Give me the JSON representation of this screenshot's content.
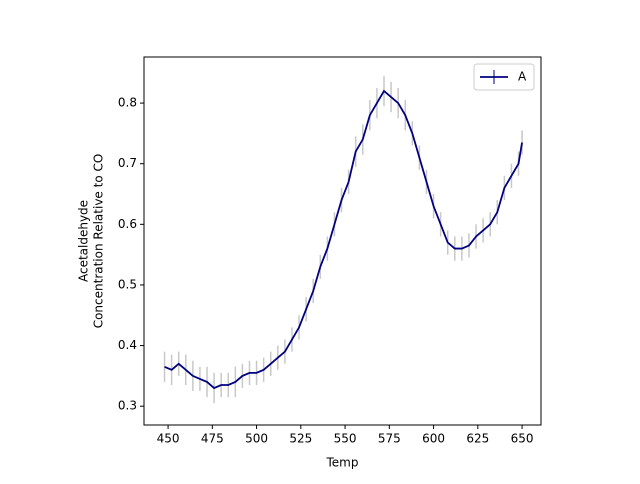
{
  "chart_data": {
    "type": "line",
    "x_label": "Temp",
    "y_label": [
      "Acetaldehyde",
      "Concentration Relative to CO"
    ],
    "x": [
      448,
      452,
      456,
      460,
      464,
      468,
      472,
      476,
      480,
      484,
      488,
      492,
      496,
      500,
      504,
      508,
      512,
      516,
      520,
      524,
      528,
      532,
      536,
      540,
      544,
      548,
      552,
      556,
      560,
      564,
      568,
      572,
      576,
      580,
      584,
      588,
      592,
      596,
      600,
      604,
      608,
      612,
      616,
      620,
      624,
      628,
      632,
      636,
      640,
      644,
      648,
      650
    ],
    "series": [
      {
        "name": "A",
        "color": "#000080",
        "error_color": "#c8c8c8",
        "values": [
          0.365,
          0.36,
          0.37,
          0.36,
          0.35,
          0.345,
          0.34,
          0.33,
          0.335,
          0.335,
          0.34,
          0.35,
          0.355,
          0.355,
          0.36,
          0.37,
          0.38,
          0.39,
          0.41,
          0.43,
          0.46,
          0.49,
          0.53,
          0.56,
          0.6,
          0.64,
          0.67,
          0.72,
          0.74,
          0.78,
          0.8,
          0.82,
          0.81,
          0.8,
          0.78,
          0.75,
          0.71,
          0.67,
          0.63,
          0.6,
          0.57,
          0.56,
          0.56,
          0.565,
          0.58,
          0.59,
          0.6,
          0.62,
          0.66,
          0.68,
          0.7,
          0.735
        ],
        "errors": [
          0.025,
          0.025,
          0.02,
          0.025,
          0.025,
          0.02,
          0.025,
          0.025,
          0.02,
          0.02,
          0.025,
          0.02,
          0.02,
          0.02,
          0.02,
          0.02,
          0.02,
          0.02,
          0.02,
          0.02,
          0.02,
          0.02,
          0.02,
          0.02,
          0.02,
          0.02,
          0.02,
          0.025,
          0.025,
          0.025,
          0.025,
          0.025,
          0.025,
          0.025,
          0.025,
          0.02,
          0.02,
          0.02,
          0.02,
          0.02,
          0.02,
          0.02,
          0.02,
          0.02,
          0.02,
          0.02,
          0.02,
          0.02,
          0.02,
          0.02,
          0.02,
          0.02
        ]
      }
    ],
    "xlim": [
      436.4,
      660.7
    ],
    "xticks": [
      450,
      475,
      500,
      525,
      550,
      575,
      600,
      625,
      650
    ],
    "ylim": [
      0.269,
      0.876
    ],
    "yticks": [
      0.3,
      0.4,
      0.5,
      0.6,
      0.7,
      0.8
    ],
    "legend": "upper right"
  }
}
